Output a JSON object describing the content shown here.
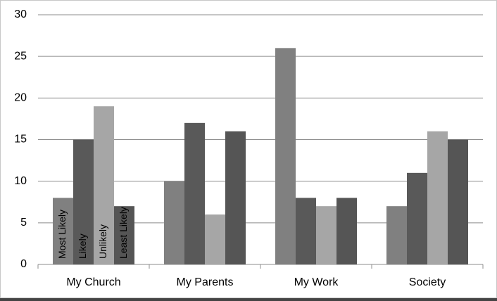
{
  "chart_data": {
    "type": "bar",
    "categories": [
      "My Church",
      "My Parents",
      "My Work",
      "Society"
    ],
    "series": [
      {
        "name": "Most Likely",
        "color": "#808080",
        "values": [
          8,
          10,
          26,
          7
        ]
      },
      {
        "name": "Likely",
        "color": "#595959",
        "values": [
          15,
          17,
          8,
          11
        ]
      },
      {
        "name": "Unlikely",
        "color": "#a6a6a6",
        "values": [
          19,
          6,
          7,
          16
        ]
      },
      {
        "name": "Least Likely",
        "color": "#555555",
        "values": [
          7,
          16,
          8,
          15
        ]
      }
    ],
    "ylim": [
      0,
      30
    ],
    "yticks": [
      0,
      5,
      10,
      15,
      20,
      25,
      30
    ],
    "grid": true
  }
}
